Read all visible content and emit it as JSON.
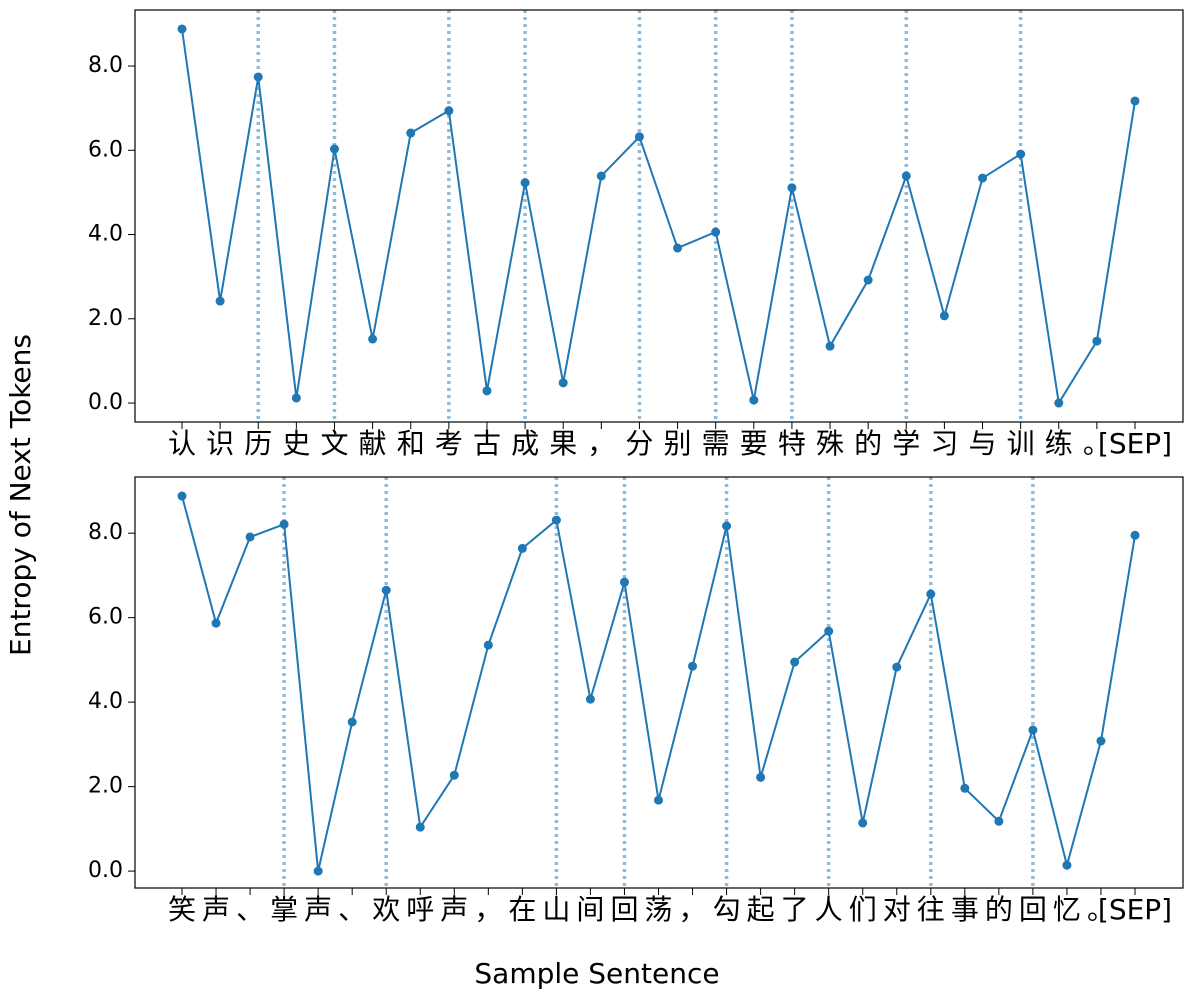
{
  "xlabel": "Sample Sentence",
  "ylabel": "Entropy of Next Tokens",
  "chart_data": [
    {
      "type": "line",
      "color": "#1f77b4",
      "marker": "circle",
      "categories": [
        "认",
        "识",
        "历",
        "史",
        "文",
        "献",
        "和",
        "考",
        "古",
        "成",
        "果",
        "，",
        "分",
        "别",
        "需",
        "要",
        "特",
        "殊",
        "的",
        "学",
        "习",
        "与",
        "训",
        "练",
        "。",
        "[SEP]"
      ],
      "values": [
        8.88,
        2.42,
        7.74,
        0.12,
        6.03,
        1.52,
        6.41,
        6.94,
        0.29,
        5.23,
        0.48,
        5.39,
        6.32,
        3.68,
        4.06,
        0.07,
        5.11,
        1.35,
        2.92,
        5.39,
        2.07,
        5.34,
        5.91,
        0.0,
        1.47,
        7.17
      ],
      "marked_categories": [
        2,
        4,
        7,
        9,
        12,
        14,
        16,
        19,
        22
      ],
      "ylim": [
        -0.45,
        9.33
      ],
      "yticks": [
        {
          "value": 0,
          "label": "0.0"
        },
        {
          "value": 2,
          "label": "2.0"
        },
        {
          "value": 4,
          "label": "4.0"
        },
        {
          "value": 6,
          "label": "6.0"
        },
        {
          "value": 8,
          "label": "8.0"
        }
      ]
    },
    {
      "type": "line",
      "color": "#1f77b4",
      "marker": "circle",
      "categories": [
        "笑",
        "声",
        "、",
        "掌",
        "声",
        "、",
        "欢",
        "呼",
        "声",
        "，",
        "在",
        "山",
        "间",
        "回",
        "荡",
        "，",
        "勾",
        "起",
        "了",
        "人",
        "们",
        "对",
        "往",
        "事",
        "的",
        "回",
        "忆",
        "。",
        "[SEP]"
      ],
      "values": [
        8.88,
        5.87,
        7.91,
        8.21,
        0.0,
        3.53,
        6.65,
        1.04,
        2.27,
        5.35,
        7.64,
        8.31,
        4.07,
        6.84,
        1.68,
        4.85,
        8.17,
        2.22,
        4.95,
        5.68,
        1.14,
        4.83,
        6.56,
        1.96,
        1.18,
        3.34,
        0.14,
        3.08,
        7.95
      ],
      "marked_categories": [
        3,
        6,
        11,
        13,
        16,
        19,
        22,
        25
      ],
      "ylim": [
        -0.4,
        9.33
      ],
      "yticks": [
        {
          "value": 0,
          "label": "0.0"
        },
        {
          "value": 2,
          "label": "2.0"
        },
        {
          "value": 4,
          "label": "4.0"
        },
        {
          "value": 6,
          "label": "6.0"
        },
        {
          "value": 8,
          "label": "8.0"
        }
      ]
    }
  ]
}
